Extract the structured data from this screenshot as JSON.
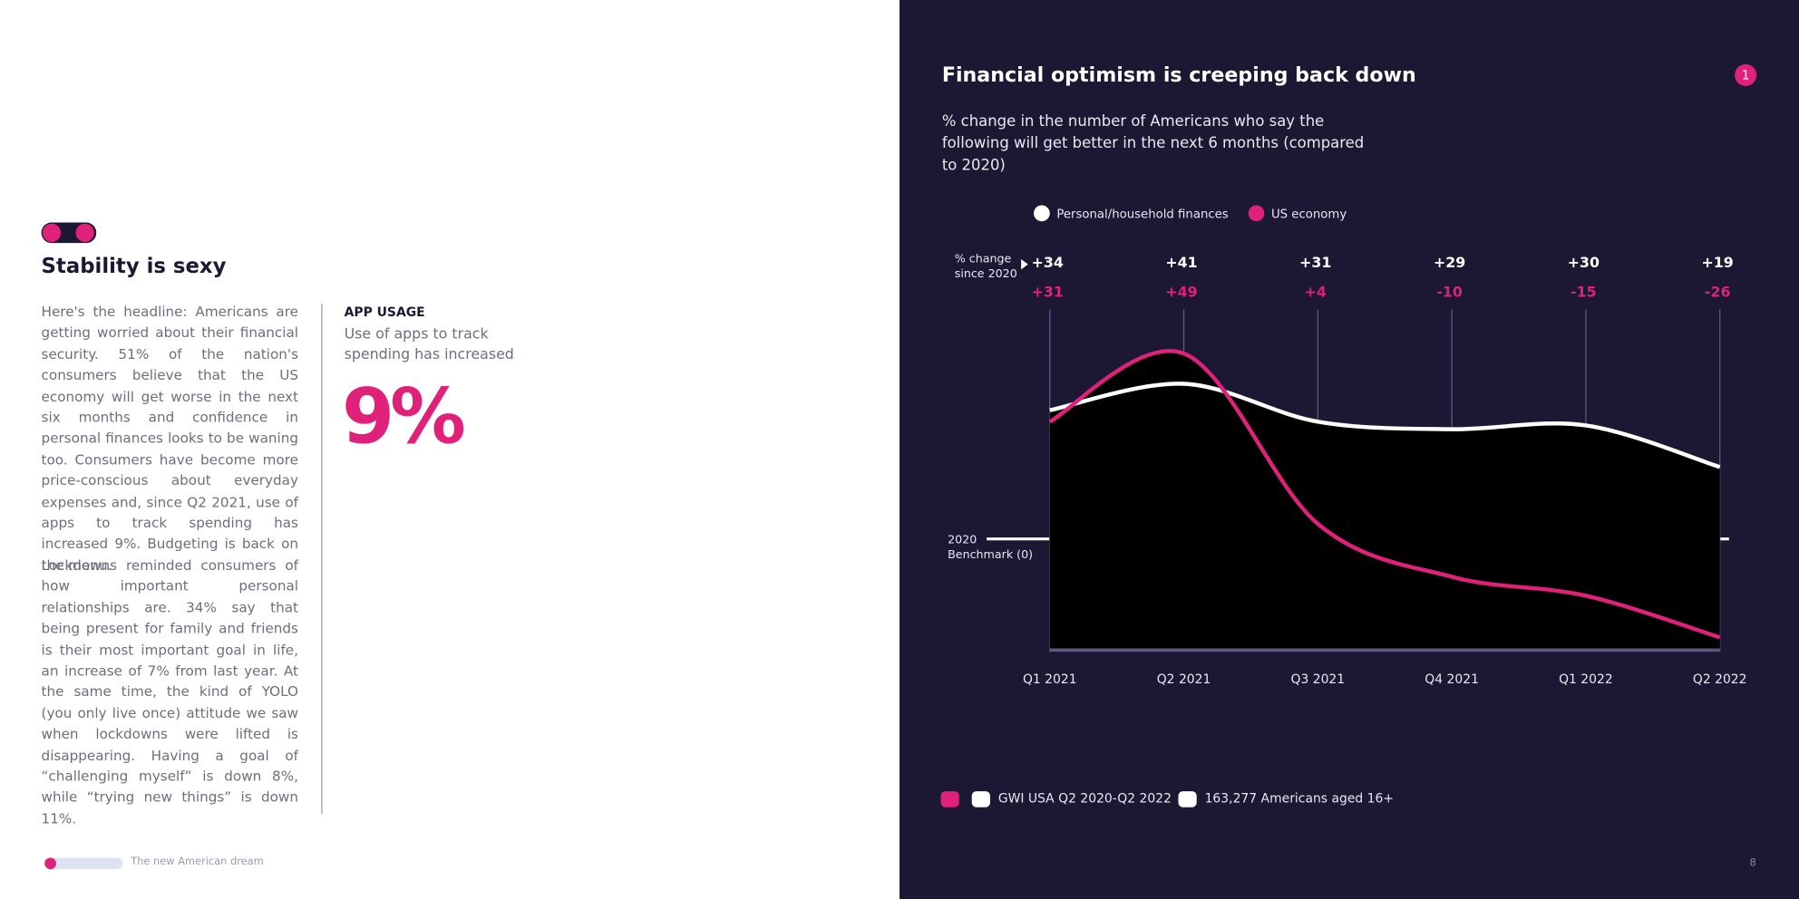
{
  "left": {
    "heading": "Stability is sexy",
    "paragraphs": [
      "Here's the headline: Americans are getting worried about their financial security. 51% of the nation's consumers believe that the US economy will get worse in the next six months and confidence in personal finances looks to be waning too. Consumers have become more price-conscious about everyday expenses and, since Q2 2021, use of apps to track spending has increased 9%. Budgeting is back on the menu.",
      "Lockdowns reminded consumers of how important personal relationships are. 34% say that being present for family and friends is their most important goal in life, an increase of 7% from last year. At the same time, the kind of YOLO (you only live once) attitude we saw when lockdowns were lifted is disappearing. Having a goal of “challenging myself” is down 8%, while “trying new things” is down 11%."
    ],
    "sidebar": {
      "label": "APP USAGE",
      "text": "Use of apps to track spending has increased",
      "stat": "9%"
    },
    "footer": "The new American dream"
  },
  "right": {
    "badge": "1",
    "source": "GWI USA Q2 2020-Q2 2022",
    "sample": "163,277 Americans aged 16+",
    "page_number": "8"
  },
  "chart_data": {
    "type": "area-line",
    "title": "Financial optimism is creeping back down",
    "subtitle": "% change in the number of Americans who say the following will get better in the next 6 months (compared to 2020)",
    "annotations": [
      "% change since 2020",
      "2020 Benchmark (0)"
    ],
    "categories": [
      "Q1 2021",
      "Q2 2021",
      "Q3 2021",
      "Q4 2021",
      "Q1 2022",
      "Q2 2022"
    ],
    "series": [
      {
        "name": "Personal/household finances",
        "color": "#ffffff",
        "values": [
          34,
          41,
          31,
          29,
          30,
          19
        ],
        "value_labels": [
          "+34",
          "+41",
          "+31",
          "+29",
          "+30",
          "+19"
        ]
      },
      {
        "name": "US economy",
        "color": "#e0217a",
        "values": [
          31,
          49,
          4,
          -10,
          -15,
          -26
        ],
        "value_labels": [
          "+31",
          "+49",
          "+4",
          "-10",
          "-15",
          "-26"
        ]
      }
    ],
    "ylim": [
      -30,
      60
    ]
  }
}
